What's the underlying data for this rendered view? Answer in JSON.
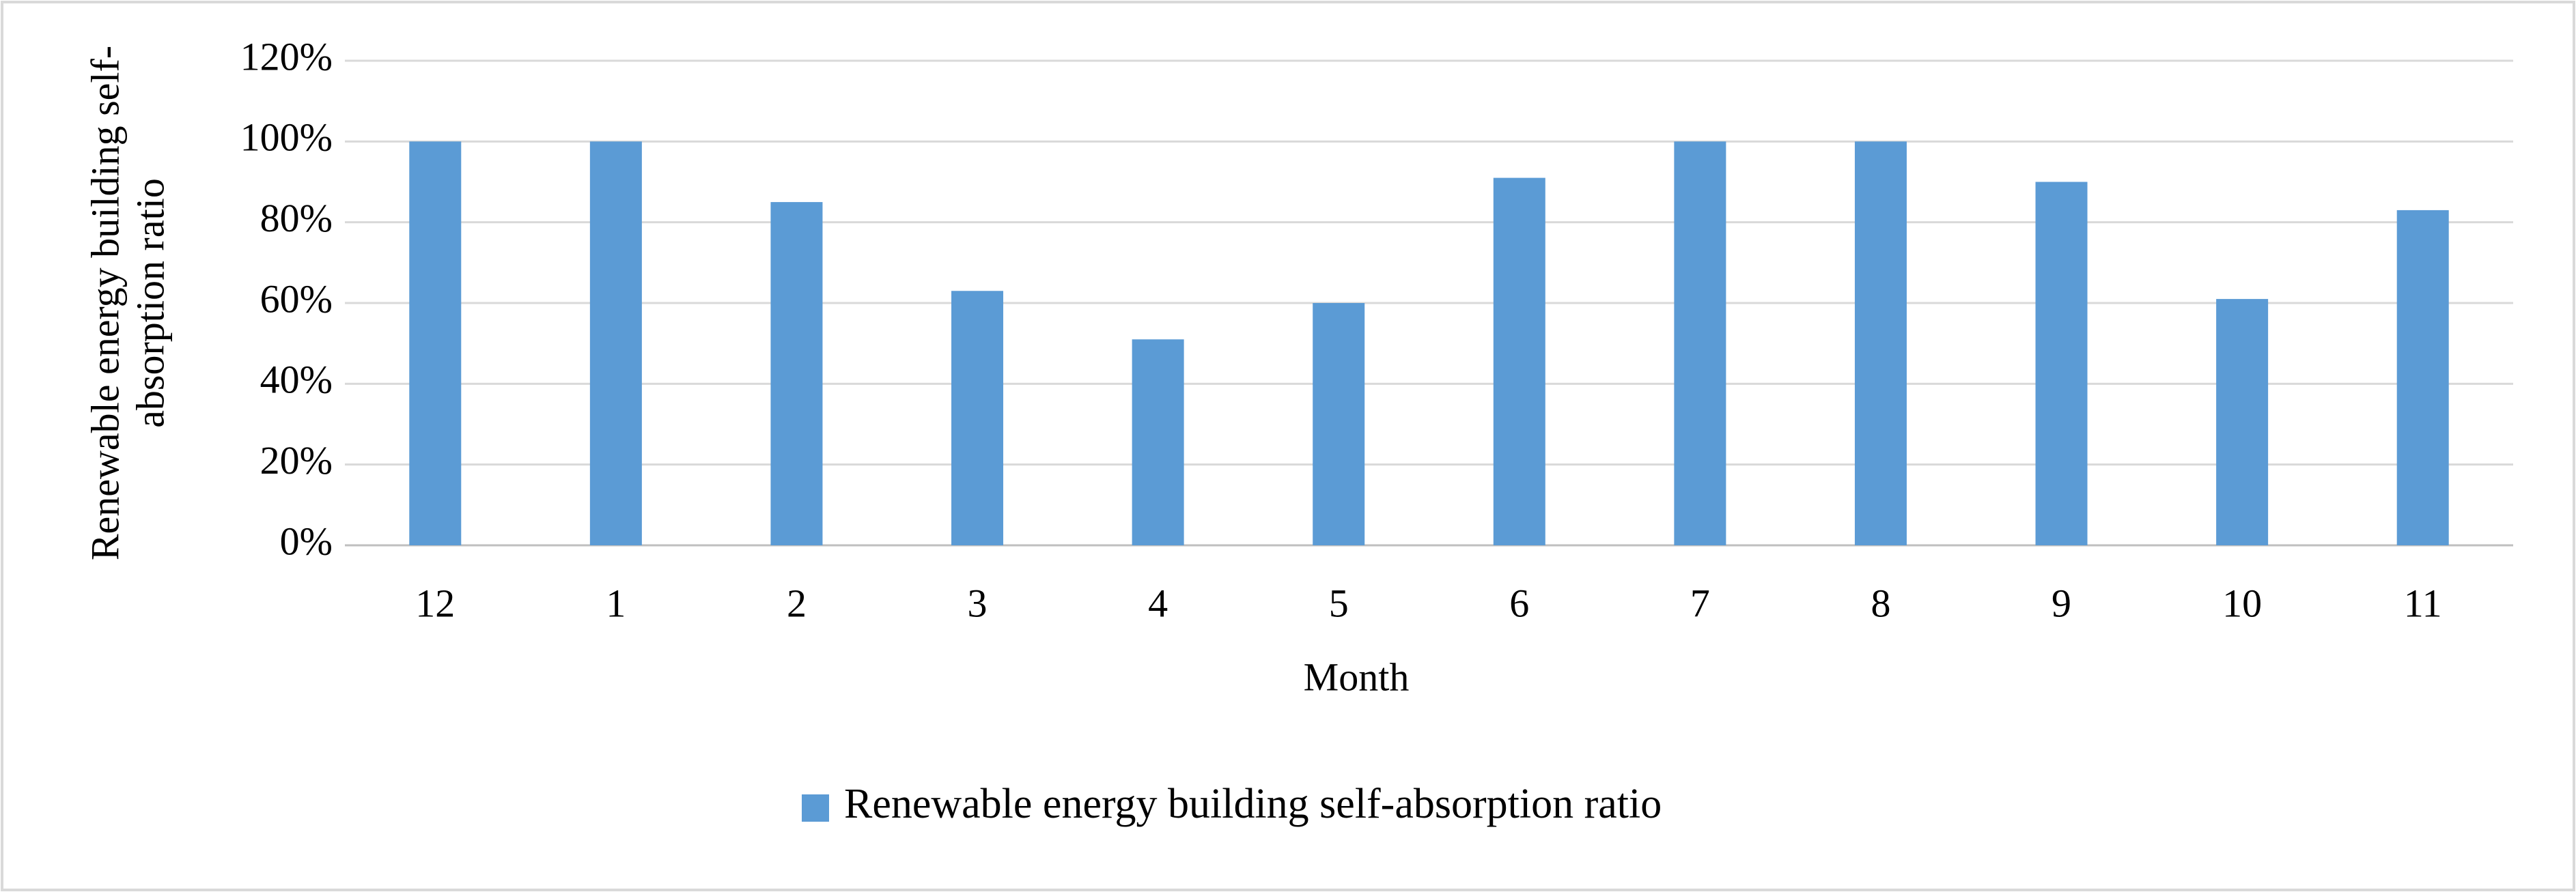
{
  "chart_data": {
    "type": "bar",
    "x_label": "Month",
    "y_label": [
      "Renewable energy building self-",
      "absorption ratio"
    ],
    "categories": [
      "12",
      "1",
      "2",
      "3",
      "4",
      "5",
      "6",
      "7",
      "8",
      "9",
      "10",
      "11"
    ],
    "series": [
      {
        "name": "Renewable energy building self-absorption ratio",
        "color": "#5b9bd5",
        "values": [
          100,
          100,
          85,
          63,
          51,
          60,
          91,
          100,
          100,
          90,
          61,
          83
        ]
      }
    ],
    "ylim": [
      0,
      120
    ],
    "yticks": [
      {
        "value": 0,
        "label": "0%"
      },
      {
        "value": 20,
        "label": "20%"
      },
      {
        "value": 40,
        "label": "40%"
      },
      {
        "value": 60,
        "label": "60%"
      },
      {
        "value": 80,
        "label": "80%"
      },
      {
        "value": 100,
        "label": "100%"
      },
      {
        "value": 120,
        "label": "120%"
      }
    ],
    "grid": true,
    "legend": "bottom"
  }
}
